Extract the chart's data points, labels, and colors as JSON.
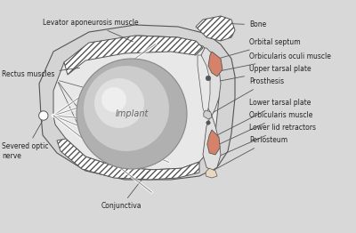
{
  "bg_color": "#d8d8d8",
  "line_color": "#555555",
  "dark_line": "#333333",
  "flesh_color": "#d4826a",
  "white_fill": "#f5f5f5",
  "light_gray": "#e0e0e0",
  "med_gray": "#c8c8c8",
  "socket_bg": "#e8e8e8",
  "implant_outer": "#b8b8b8",
  "implant_mid": "#d0d0d0",
  "implant_inner": "#e8e8e8",
  "labels": {
    "levator": "Levator aponeurosis muscle",
    "bone": "Bone",
    "orbital_septum": "Orbital septum",
    "orbicularis_oculi": "Orbicularis oculi muscle",
    "upper_tarsal": "Upper tarsal plate",
    "prosthesis": "Prosthesis",
    "lower_tarsal": "Lower tarsal plate",
    "orbicularis": "Orbicularis muscle",
    "lower_lid": "Lower lid retractors",
    "periosteum": "Periosteum",
    "rectus": "Rectus muscles",
    "severed": "Severed optic\nnerve",
    "conjunctiva": "Conjunctiva",
    "implant": "Implant"
  },
  "lfs": 5.5,
  "ifs": 7.0
}
